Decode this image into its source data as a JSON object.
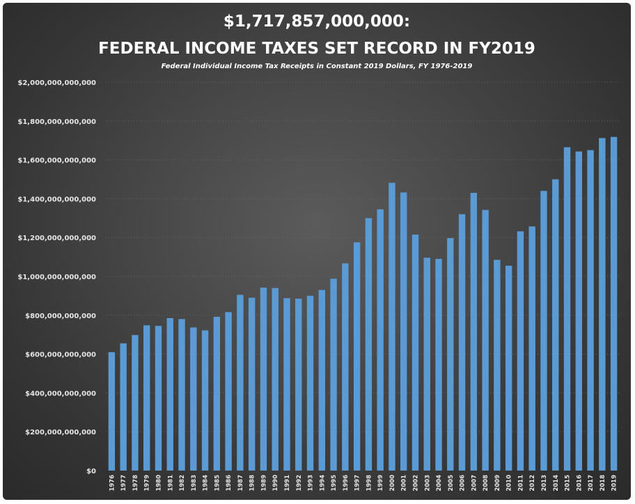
{
  "chart_data": {
    "type": "bar",
    "title_line1": "$1,717,857,000,000:",
    "title_line2": "FEDERAL INCOME TAXES SET RECORD IN FY2019",
    "subtitle": "Federal Individual Income Tax Receipts in Constant 2019 Dollars, FY 1976-2019",
    "xlabel": "",
    "ylabel": "",
    "ylim": [
      0,
      2000000000000
    ],
    "grid": true,
    "bar_color": "#5b9bd5",
    "y_tick_labels": [
      {
        "value": 0,
        "label": "$0"
      },
      {
        "value": 200000000000,
        "label": "$200,000,000,000"
      },
      {
        "value": 400000000000,
        "label": "$400,000,000,000"
      },
      {
        "value": 600000000000,
        "label": "$600,000,000,000"
      },
      {
        "value": 800000000000,
        "label": "$800,000,000,000"
      },
      {
        "value": 1000000000000,
        "label": "$1,000,000,000,000"
      },
      {
        "value": 1200000000000,
        "label": "$1,200,000,000,000"
      },
      {
        "value": 1400000000000,
        "label": "$1,400,000,000,000"
      },
      {
        "value": 1600000000000,
        "label": "$1,600,000,000,000"
      },
      {
        "value": 1800000000000,
        "label": "$1,800,000,000,000"
      },
      {
        "value": 2000000000000,
        "label": "$2,000,000,000,000"
      }
    ],
    "categories": [
      "1976",
      "1977",
      "1978",
      "1979",
      "1980",
      "1981",
      "1982",
      "1983",
      "1984",
      "1985",
      "1986",
      "1987",
      "1988",
      "1989",
      "1990",
      "1991",
      "1992",
      "1993",
      "1994",
      "1995",
      "1996",
      "1997",
      "1998",
      "1999",
      "2000",
      "2001",
      "2002",
      "2003",
      "2004",
      "2005",
      "2006",
      "2007",
      "2008",
      "2009",
      "2010",
      "2011",
      "2012",
      "2013",
      "2014",
      "2015",
      "2016",
      "2017",
      "2018",
      "2019"
    ],
    "values": [
      610000000000,
      655000000000,
      698000000000,
      748000000000,
      745000000000,
      785000000000,
      780000000000,
      737000000000,
      722000000000,
      792000000000,
      816000000000,
      905000000000,
      890000000000,
      942000000000,
      940000000000,
      888000000000,
      885000000000,
      900000000000,
      930000000000,
      988000000000,
      1067000000000,
      1175000000000,
      1300000000000,
      1345000000000,
      1482000000000,
      1432000000000,
      1215000000000,
      1096000000000,
      1090000000000,
      1197000000000,
      1320000000000,
      1430000000000,
      1342000000000,
      1085000000000,
      1055000000000,
      1232000000000,
      1257000000000,
      1440000000000,
      1500000000000,
      1665000000000,
      1643000000000,
      1650000000000,
      1712000000000,
      1717857000000
    ]
  }
}
